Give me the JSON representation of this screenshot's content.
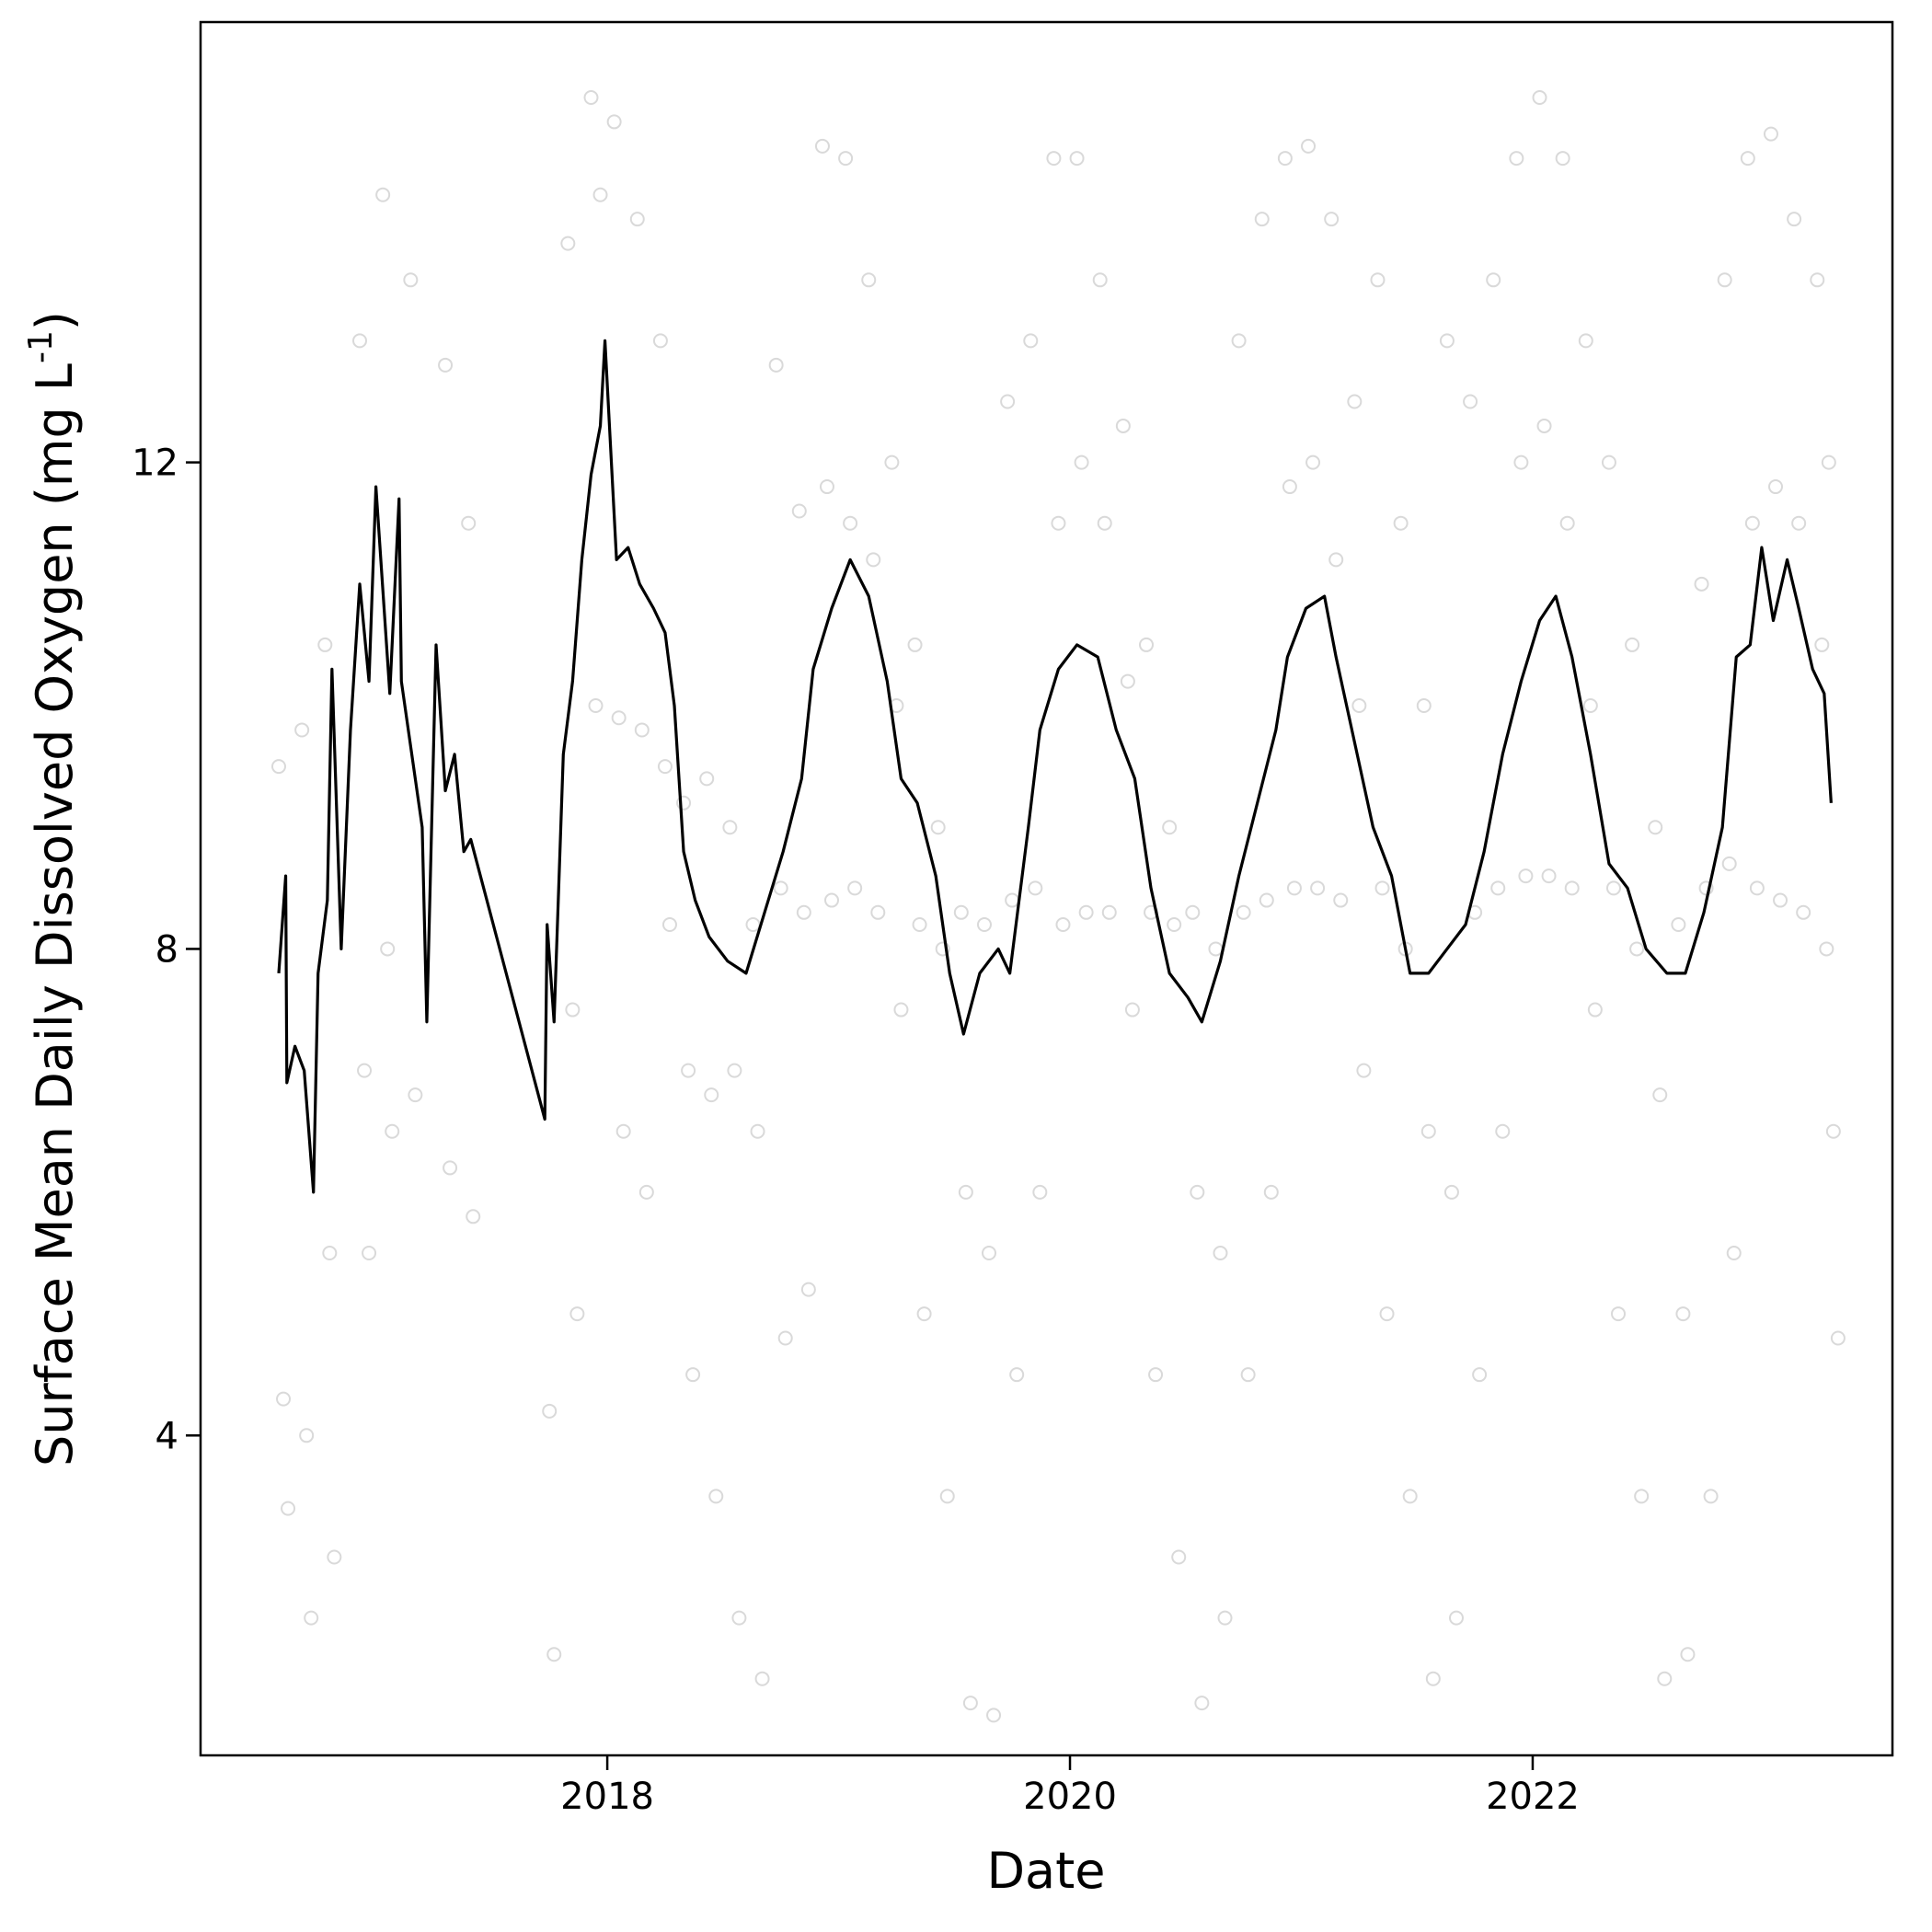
{
  "chart_data": {
    "type": "line",
    "x_label": "Date",
    "y_label_parts": [
      "Surface Mean Daily Dissolved Oxygen (mg L",
      "-1",
      ")"
    ],
    "xlim": [
      2016.242,
      2023.555
    ],
    "ylim": [
      1.37,
      15.62
    ],
    "xticks": [
      2018,
      2020,
      2022
    ],
    "yticks": [
      4,
      8,
      12
    ],
    "grid": false,
    "series": [
      {
        "type": "scatter",
        "color": "#808080",
        "x": [
          2016.58,
          2016.6,
          2016.62,
          2016.68,
          2016.7,
          2016.72,
          2016.78,
          2016.8,
          2016.82,
          2016.93,
          2016.95,
          2016.97,
          2017.03,
          2017.05,
          2017.07,
          2017.15,
          2017.17,
          2017.3,
          2017.32,
          2017.4,
          2017.42,
          2017.75,
          2017.77,
          2017.83,
          2017.85,
          2017.87,
          2017.93,
          2017.95,
          2017.97,
          2018.03,
          2018.05,
          2018.07,
          2018.13,
          2018.15,
          2018.17,
          2018.23,
          2018.25,
          2018.27,
          2018.33,
          2018.35,
          2018.37,
          2018.43,
          2018.45,
          2018.47,
          2018.53,
          2018.55,
          2018.57,
          2018.63,
          2018.65,
          2018.67,
          2018.73,
          2018.75,
          2018.77,
          2018.83,
          2018.85,
          2018.87,
          2018.93,
          2018.95,
          2018.97,
          2019.03,
          2019.05,
          2019.07,
          2019.13,
          2019.15,
          2019.17,
          2019.23,
          2019.25,
          2019.27,
          2019.33,
          2019.35,
          2019.37,
          2019.43,
          2019.45,
          2019.47,
          2019.53,
          2019.55,
          2019.57,
          2019.63,
          2019.65,
          2019.67,
          2019.73,
          2019.75,
          2019.77,
          2019.83,
          2019.85,
          2019.87,
          2019.93,
          2019.95,
          2019.97,
          2020.03,
          2020.05,
          2020.07,
          2020.13,
          2020.15,
          2020.17,
          2020.23,
          2020.25,
          2020.27,
          2020.33,
          2020.35,
          2020.37,
          2020.43,
          2020.45,
          2020.47,
          2020.53,
          2020.55,
          2020.57,
          2020.63,
          2020.65,
          2020.67,
          2020.73,
          2020.75,
          2020.77,
          2020.83,
          2020.85,
          2020.87,
          2020.93,
          2020.95,
          2020.97,
          2021.03,
          2021.05,
          2021.07,
          2021.13,
          2021.15,
          2021.17,
          2021.23,
          2021.25,
          2021.27,
          2021.33,
          2021.35,
          2021.37,
          2021.43,
          2021.45,
          2021.47,
          2021.53,
          2021.55,
          2021.57,
          2021.63,
          2021.65,
          2021.67,
          2021.73,
          2021.75,
          2021.77,
          2021.83,
          2021.85,
          2021.87,
          2021.93,
          2021.95,
          2021.97,
          2022.03,
          2022.05,
          2022.07,
          2022.13,
          2022.15,
          2022.17,
          2022.23,
          2022.25,
          2022.27,
          2022.33,
          2022.35,
          2022.37,
          2022.43,
          2022.45,
          2022.47,
          2022.53,
          2022.55,
          2022.57,
          2022.63,
          2022.65,
          2022.67,
          2022.73,
          2022.75,
          2022.77,
          2022.83,
          2022.85,
          2022.87,
          2022.93,
          2022.95,
          2022.97,
          2023.03,
          2023.05,
          2023.07,
          2023.13,
          2023.15,
          2023.17,
          2023.23,
          2023.25,
          2023.27,
          2023.28,
          2023.3,
          2023.32
        ],
        "values": [
          9.5,
          4.3,
          3.4,
          9.8,
          4.0,
          2.5,
          10.5,
          5.5,
          3.0,
          13.0,
          7.0,
          5.5,
          14.2,
          8.0,
          6.5,
          13.5,
          6.8,
          12.8,
          6.2,
          11.5,
          5.8,
          4.2,
          2.2,
          13.8,
          7.5,
          5.0,
          15.0,
          10.0,
          14.2,
          14.8,
          9.9,
          6.5,
          14.0,
          9.8,
          6.0,
          13.0,
          9.5,
          8.2,
          9.2,
          7.0,
          4.5,
          9.4,
          6.8,
          3.5,
          9.0,
          7.0,
          2.5,
          8.2,
          6.5,
          2.0,
          12.8,
          8.5,
          4.8,
          11.6,
          8.3,
          5.2,
          14.6,
          11.8,
          8.4,
          14.5,
          11.5,
          8.5,
          13.5,
          11.2,
          8.3,
          12.0,
          10.0,
          7.5,
          10.5,
          8.2,
          5.0,
          9.0,
          8.0,
          3.5,
          8.3,
          6.0,
          1.8,
          8.2,
          5.5,
          1.7,
          12.5,
          8.4,
          4.5,
          13.0,
          8.5,
          6.0,
          14.5,
          11.5,
          8.2,
          14.5,
          12.0,
          8.3,
          13.5,
          11.5,
          8.3,
          12.3,
          10.2,
          7.5,
          10.5,
          8.3,
          4.5,
          9.0,
          8.2,
          3.0,
          8.3,
          6.0,
          1.8,
          8.0,
          5.5,
          2.5,
          13.0,
          8.3,
          4.5,
          14.0,
          8.4,
          6.0,
          14.5,
          11.8,
          8.5,
          14.6,
          12.0,
          8.5,
          14.0,
          11.2,
          8.4,
          12.5,
          10.0,
          7.0,
          13.5,
          8.5,
          5.0,
          11.5,
          8.0,
          3.5,
          10.0,
          6.5,
          2.0,
          13.0,
          6.0,
          2.5,
          12.5,
          8.3,
          4.5,
          13.5,
          8.5,
          6.5,
          14.5,
          12.0,
          8.6,
          15.0,
          12.3,
          8.6,
          14.5,
          11.5,
          8.5,
          13.0,
          10.0,
          7.5,
          12.0,
          8.5,
          5.0,
          10.5,
          8.0,
          3.5,
          9.0,
          6.8,
          2.0,
          8.2,
          5.0,
          2.2,
          11.0,
          8.5,
          3.5,
          13.5,
          8.7,
          5.5,
          14.5,
          11.5,
          8.5,
          14.7,
          11.8,
          8.4,
          14.0,
          11.5,
          8.3,
          13.5,
          10.5,
          8.0,
          12.0,
          6.5,
          4.8
        ]
      },
      {
        "type": "line",
        "color": "#000000",
        "x": [
          2016.58,
          2016.61,
          2016.615,
          2016.65,
          2016.69,
          2016.73,
          2016.75,
          2016.79,
          2016.81,
          2016.85,
          2016.89,
          2016.93,
          2016.97,
          2017.0,
          2017.06,
          2017.1,
          2017.11,
          2017.2,
          2017.22,
          2017.26,
          2017.3,
          2017.34,
          2017.38,
          2017.41,
          2017.73,
          2017.74,
          2017.77,
          2017.81,
          2017.85,
          2017.89,
          2017.93,
          2017.97,
          2017.99,
          2018.04,
          2018.09,
          2018.14,
          2018.2,
          2018.25,
          2018.29,
          2018.33,
          2018.38,
          2018.44,
          2018.52,
          2018.6,
          2018.68,
          2018.76,
          2018.84,
          2018.89,
          2018.97,
          2019.05,
          2019.13,
          2019.21,
          2019.27,
          2019.34,
          2019.42,
          2019.48,
          2019.54,
          2019.61,
          2019.69,
          2019.74,
          2019.82,
          2019.87,
          2019.95,
          2020.03,
          2020.12,
          2020.2,
          2020.28,
          2020.35,
          2020.43,
          2020.51,
          2020.57,
          2020.65,
          2020.73,
          2020.81,
          2020.89,
          2020.94,
          2021.02,
          2021.1,
          2021.15,
          2021.23,
          2021.31,
          2021.39,
          2021.47,
          2021.55,
          2021.63,
          2021.71,
          2021.79,
          2021.87,
          2021.95,
          2022.03,
          2022.1,
          2022.17,
          2022.25,
          2022.33,
          2022.41,
          2022.49,
          2022.58,
          2022.66,
          2022.74,
          2022.82,
          2022.88,
          2022.94,
          2022.99,
          2023.04,
          2023.1,
          2023.15,
          2023.21,
          2023.26,
          2023.29
        ],
        "values": [
          7.8,
          8.6,
          6.9,
          7.2,
          7.0,
          6.0,
          7.8,
          8.4,
          10.3,
          8.0,
          9.8,
          11.0,
          10.2,
          11.8,
          10.1,
          11.7,
          10.2,
          9.0,
          7.4,
          10.5,
          9.3,
          9.6,
          8.8,
          8.9,
          6.6,
          8.2,
          7.4,
          9.6,
          10.2,
          11.2,
          11.9,
          12.3,
          13.0,
          11.2,
          11.3,
          11.0,
          10.8,
          10.6,
          10.0,
          8.8,
          8.4,
          8.1,
          7.9,
          7.8,
          8.3,
          8.8,
          9.4,
          10.3,
          10.8,
          11.2,
          10.9,
          10.2,
          9.4,
          9.2,
          8.6,
          7.8,
          7.3,
          7.8,
          8.0,
          7.8,
          9.0,
          9.8,
          10.3,
          10.5,
          10.4,
          9.8,
          9.4,
          8.5,
          7.8,
          7.6,
          7.4,
          7.9,
          8.6,
          9.2,
          9.8,
          10.4,
          10.8,
          10.9,
          10.4,
          9.7,
          9.0,
          8.6,
          7.8,
          7.8,
          8.0,
          8.2,
          8.8,
          9.6,
          10.2,
          10.7,
          10.9,
          10.4,
          9.6,
          8.7,
          8.5,
          8.0,
          7.8,
          7.8,
          8.3,
          9.0,
          10.4,
          10.5,
          11.3,
          10.7,
          11.2,
          10.8,
          10.3,
          10.1,
          9.2
        ]
      }
    ]
  }
}
